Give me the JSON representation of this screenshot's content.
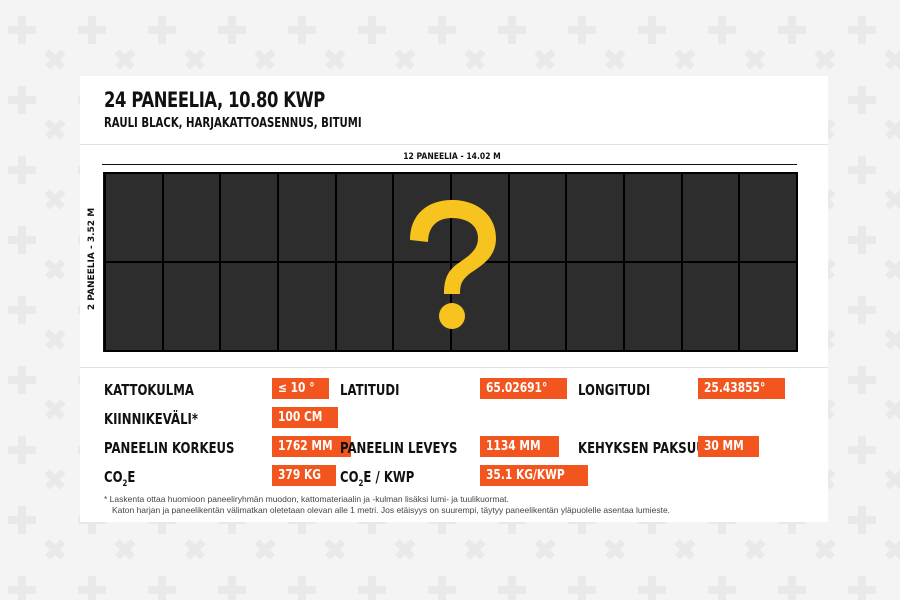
{
  "header": {
    "title": "24 PANEELIA, 10.80 KWP",
    "subtitle": "RAULI BLACK, HARJAKATTOASENNUS, BITUMI"
  },
  "layout_diagram": {
    "width_label": "12 PANEELIA - 14.02 M",
    "height_label": "2 PANEELIA - 3.52 M",
    "columns": 12,
    "rows": 2,
    "overlay_icon": "question-mark-icon"
  },
  "specs": {
    "kattokulma": {
      "label": "KATTOKULMA",
      "value": "≤ 10 °"
    },
    "latitudi": {
      "label": "LATITUDI",
      "value": "65.02691°"
    },
    "longitudi": {
      "label": "LONGITUDI",
      "value": "25.43855°"
    },
    "kiinnikevali": {
      "label": "KIINNIKEVÄLI*",
      "value": "100 CM"
    },
    "korkeus": {
      "label": "PANEELIN KORKEUS",
      "value": "1762 MM"
    },
    "leveys": {
      "label": "PANEELIN LEVEYS",
      "value": "1134 MM"
    },
    "kehys": {
      "label": "KEHYKSEN PAKSUUS",
      "value": "30 MM"
    },
    "co2e": {
      "label_main": "CO",
      "label_sub": "2",
      "label_tail": "E",
      "value": "379 KG"
    },
    "co2e_kwp": {
      "label_main": "CO",
      "label_sub": "2",
      "label_tail": "E / KWP",
      "value": "35.1 KG/KWP"
    }
  },
  "footnote": {
    "line1": "* Laskenta ottaa huomioon paneeliryhmän muodon, kattomateriaalin ja -kulman lisäksi lumi- ja tuulikuormat.",
    "line2": "Katon harjan ja paneelikentän välimatkan oletetaan olevan alle 1 metri. Jos etäisyys on suurempi, täytyy paneelikentän yläpuolelle asentaa lumieste."
  },
  "colors": {
    "accent": "#f2551d",
    "panel": "#2d2d2d",
    "question_mark": "#f7c31f"
  }
}
